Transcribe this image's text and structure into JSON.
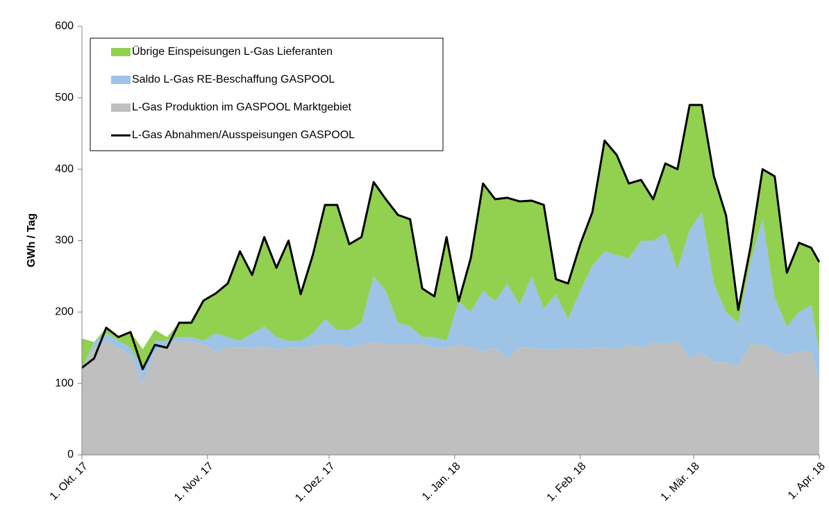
{
  "chart_data": {
    "type": "area",
    "stacked": true,
    "y_label": "GWh / Tag",
    "x": [
      0,
      3,
      6,
      9,
      12,
      15,
      18,
      21,
      24,
      27,
      30,
      33,
      36,
      39,
      42,
      45,
      48,
      51,
      54,
      57,
      60,
      63,
      66,
      69,
      72,
      75,
      78,
      81,
      84,
      87,
      90,
      93,
      96,
      99,
      102,
      105,
      108,
      111,
      114,
      117,
      120,
      123,
      126,
      129,
      132,
      135,
      138,
      141,
      144,
      147,
      150,
      153,
      156,
      159,
      162,
      165,
      168,
      171,
      174,
      177,
      180,
      182
    ],
    "xlim": [
      0,
      182
    ],
    "xticks": [
      {
        "value": 0,
        "label": "1. Okt. 17"
      },
      {
        "value": 31,
        "label": "1. Nov. 17"
      },
      {
        "value": 61,
        "label": "1. Dez. 17"
      },
      {
        "value": 92,
        "label": "1. Jan. 18"
      },
      {
        "value": 123,
        "label": "1. Feb. 18"
      },
      {
        "value": 151,
        "label": "1. Mär. 18"
      },
      {
        "value": 182,
        "label": "1. Apr. 18"
      }
    ],
    "ylim": [
      0,
      600
    ],
    "yticks": [
      0,
      100,
      200,
      300,
      400,
      500,
      600
    ],
    "grid": false,
    "legend": "top-left",
    "series": [
      {
        "name": "L-Gas Produktion im GASPOOL Marktgebiet",
        "kind": "area",
        "color": "#bfbfbf",
        "values": [
          120,
          150,
          160,
          150,
          140,
          100,
          145,
          155,
          160,
          158,
          155,
          145,
          150,
          150,
          150,
          152,
          148,
          150,
          150,
          152,
          155,
          155,
          150,
          155,
          158,
          155,
          155,
          155,
          155,
          150,
          150,
          155,
          150,
          145,
          150,
          135,
          150,
          150,
          148,
          148,
          150,
          148,
          150,
          150,
          148,
          155,
          150,
          158,
          155,
          160,
          135,
          143,
          130,
          130,
          125,
          155,
          155,
          145,
          140,
          145,
          145,
          105
        ]
      },
      {
        "name": "Saldo L-Gas RE-Beschaffung GASPOOL",
        "kind": "area",
        "color": "#9dc3e6",
        "values": [
          0,
          8,
          10,
          10,
          10,
          20,
          15,
          5,
          5,
          7,
          5,
          25,
          15,
          10,
          20,
          28,
          17,
          10,
          10,
          18,
          35,
          20,
          25,
          30,
          92,
          75,
          30,
          25,
          10,
          15,
          10,
          60,
          50,
          85,
          65,
          105,
          60,
          100,
          57,
          77,
          40,
          82,
          115,
          135,
          132,
          120,
          150,
          142,
          155,
          100,
          180,
          197,
          110,
          70,
          60,
          115,
          175,
          75,
          40,
          55,
          65,
          40
        ]
      },
      {
        "name": "Übrige Einspeisungen L-Gas Lieferanten",
        "kind": "area",
        "color": "#92d050",
        "values": [
          43,
          0,
          8,
          5,
          22,
          28,
          15,
          5,
          20,
          20,
          56,
          56,
          75,
          125,
          82,
          125,
          97,
          140,
          65,
          110,
          160,
          175,
          120,
          120,
          132,
          128,
          151,
          150,
          68,
          57,
          145,
          0,
          76,
          150,
          143,
          120,
          145,
          106,
          145,
          21,
          50,
          65,
          75,
          155,
          140,
          105,
          85,
          58,
          98,
          140,
          175,
          150,
          150,
          135,
          18,
          20,
          70,
          170,
          75,
          97,
          80,
          125
        ]
      },
      {
        "name": "L-Gas Abnahmen/Ausspeisungen GASPOOL",
        "kind": "line",
        "color": "#000000",
        "values": [
          122,
          135,
          178,
          165,
          172,
          120,
          154,
          150,
          185,
          185,
          216,
          226,
          240,
          285,
          252,
          305,
          262,
          300,
          225,
          280,
          350,
          350,
          295,
          305,
          382,
          358,
          336,
          330,
          233,
          222,
          305,
          215,
          276,
          380,
          358,
          360,
          355,
          356,
          350,
          246,
          240,
          295,
          340,
          440,
          420,
          380,
          385,
          358,
          408,
          400,
          490,
          490,
          390,
          335,
          203,
          290,
          400,
          390,
          255,
          297,
          290,
          270
        ]
      }
    ]
  }
}
